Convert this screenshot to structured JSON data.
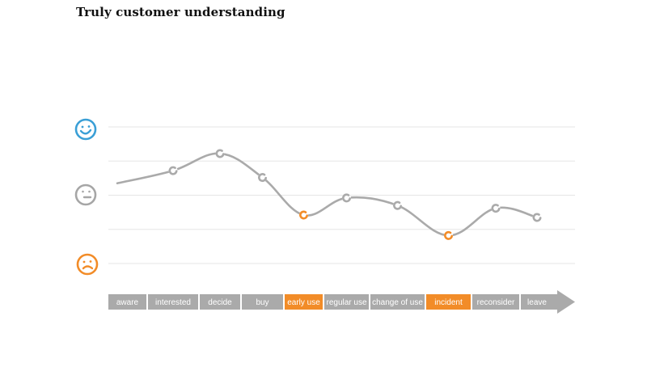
{
  "title": "Truly customer understanding",
  "colors": {
    "line": "#aaaaaa",
    "grid": "#e6e6e6",
    "highlight": "#f28c28",
    "stage": "#aaaaaa",
    "happy": "#3a9fd6",
    "neutral": "#a6a6a6",
    "sad": "#f28c28"
  },
  "chart_data": {
    "type": "line",
    "categories": [
      "aware",
      "interested",
      "decide",
      "buy",
      "early use",
      "regular use",
      "change of use",
      "incident",
      "reconsider",
      "leave"
    ],
    "highlighted_categories": [
      "early use",
      "incident"
    ],
    "values": [
      0.35,
      0.72,
      1.22,
      0.52,
      -0.58,
      -0.08,
      -0.3,
      -1.18,
      -0.38,
      -0.65
    ],
    "ylim": [
      -2,
      2
    ],
    "y_markers": [
      {
        "value": 2,
        "icon": "happy-face-icon"
      },
      {
        "value": 0,
        "icon": "neutral-face-icon"
      },
      {
        "value": -2,
        "icon": "sad-face-icon"
      }
    ],
    "grid": true,
    "xlabel": "",
    "ylabel": ""
  }
}
